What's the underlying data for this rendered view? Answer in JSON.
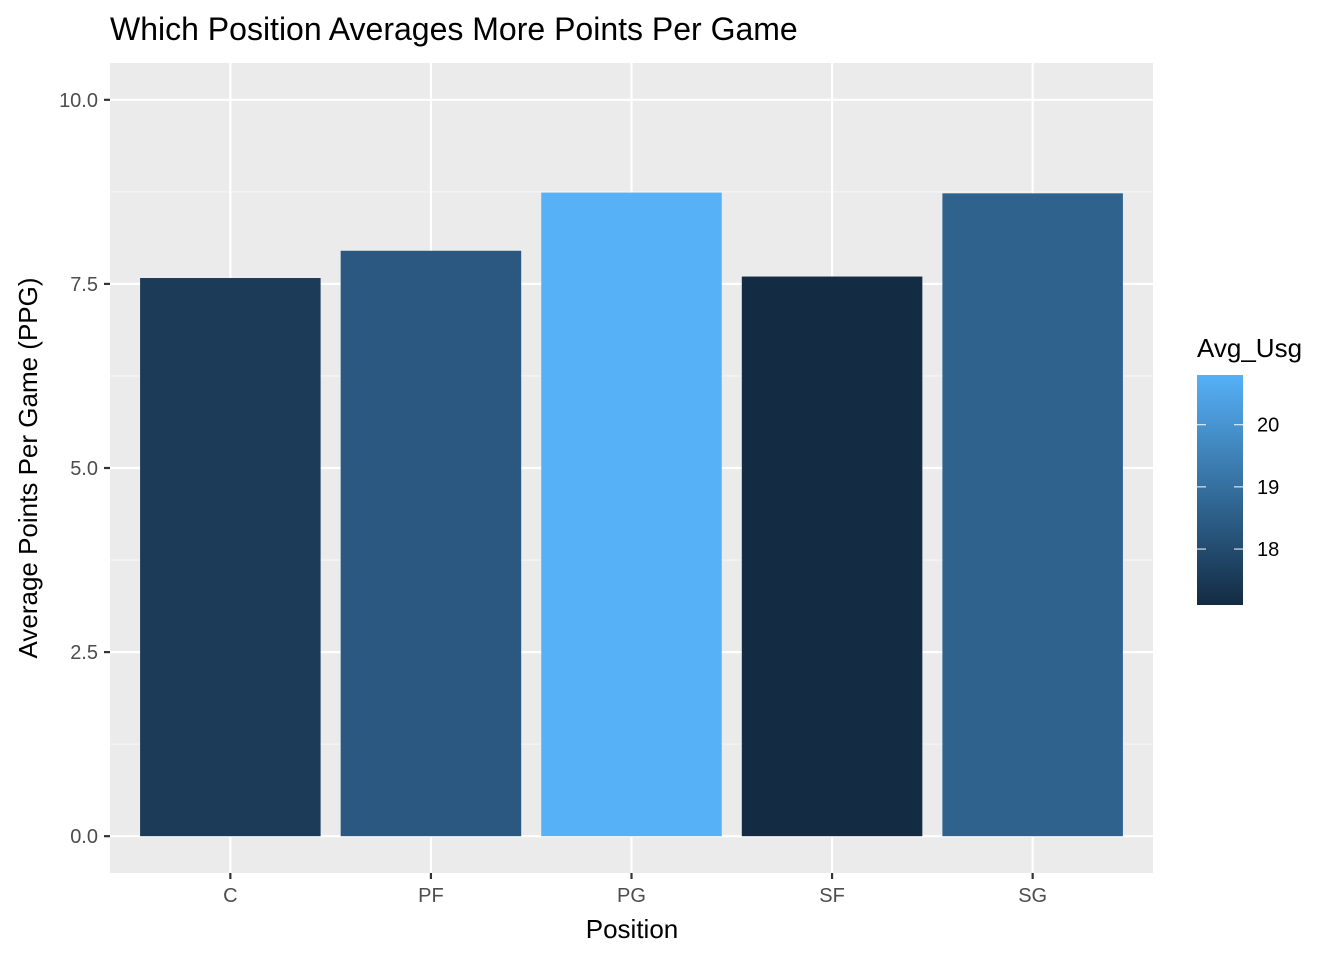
{
  "chart_data": {
    "type": "bar",
    "title": "Which Position Averages More Points Per Game",
    "xlabel": "Position",
    "ylabel": "Average Points Per Game (PPG)",
    "categories": [
      "C",
      "PF",
      "PG",
      "SF",
      "SG"
    ],
    "values": [
      7.58,
      7.95,
      8.74,
      7.6,
      8.73
    ],
    "fill_values": [
      17.55,
      18.35,
      20.8,
      17.1,
      18.65
    ],
    "ylim": [
      -0.5,
      10.5
    ],
    "yticks": [
      0,
      2.5,
      5,
      7.5,
      10
    ],
    "ytick_labels": [
      "0.0",
      "2.5",
      "5.0",
      "7.5",
      "10.0"
    ],
    "grid": true,
    "legend": {
      "title": "Avg_Usg",
      "placement": "right",
      "range": [
        17.1,
        20.8
      ],
      "ticks": [
        18,
        19,
        20
      ],
      "tick_labels": [
        "18",
        "19",
        "20"
      ],
      "color_low": "#132B43",
      "color_high": "#56B1F7"
    },
    "colors": {
      "panel_background": "#EBEBEB",
      "grid_major": "#FFFFFF",
      "grid_minor": "#F7F7F7"
    }
  }
}
